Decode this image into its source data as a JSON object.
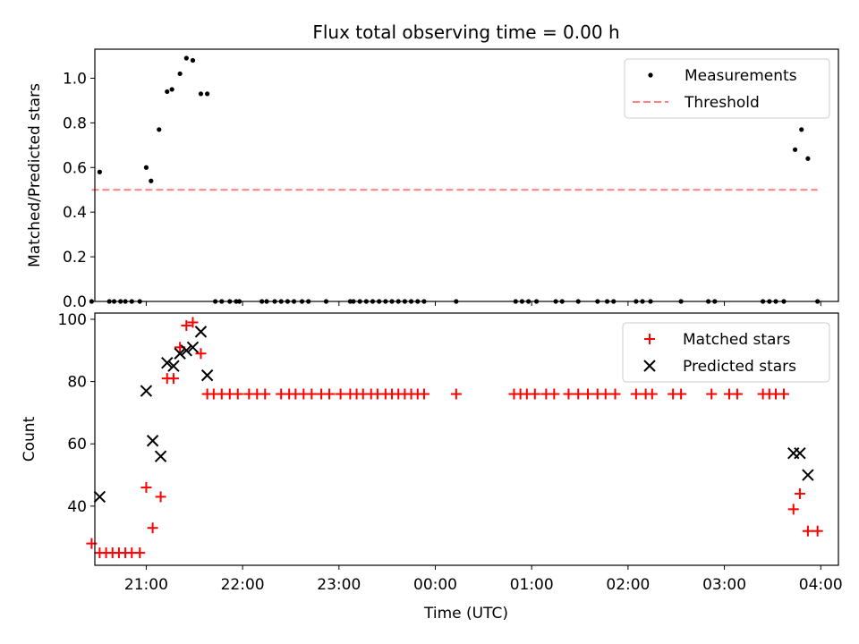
{
  "chart_data": [
    {
      "type": "scatter",
      "title": "Flux total observing time = 0.00 h",
      "xlabel": "",
      "ylabel": "Matched/Predicted stars",
      "xlim": [
        "20:28",
        "04:11"
      ],
      "ylim": [
        0,
        1.13
      ],
      "yticks": [
        "0.0",
        "0.2",
        "0.4",
        "0.6",
        "0.8",
        "1.0"
      ],
      "grid": false,
      "legend_position": "top-right",
      "series": [
        {
          "name": "Measurements",
          "marker": "dot",
          "color": "#000000",
          "points": [
            [
              "20:26",
              0.0
            ],
            [
              "20:31",
              0.58
            ],
            [
              "20:37",
              0.0
            ],
            [
              "20:40",
              0.0
            ],
            [
              "20:44",
              0.0
            ],
            [
              "20:47",
              0.0
            ],
            [
              "20:51",
              0.0
            ],
            [
              "20:56",
              0.0
            ],
            [
              "21:00",
              0.6
            ],
            [
              "21:03",
              0.54
            ],
            [
              "21:08",
              0.77
            ],
            [
              "21:13",
              0.94
            ],
            [
              "21:16",
              0.95
            ],
            [
              "21:21",
              1.02
            ],
            [
              "21:25",
              1.09
            ],
            [
              "21:29",
              1.08
            ],
            [
              "21:34",
              0.93
            ],
            [
              "21:38",
              0.93
            ],
            [
              "21:43",
              0.0
            ],
            [
              "21:47",
              0.0
            ],
            [
              "21:52",
              0.0
            ],
            [
              "21:56",
              0.0
            ],
            [
              "21:58",
              0.0
            ],
            [
              "22:12",
              0.0
            ],
            [
              "22:15",
              0.0
            ],
            [
              "22:20",
              0.0
            ],
            [
              "22:24",
              0.0
            ],
            [
              "22:28",
              0.0
            ],
            [
              "22:32",
              0.0
            ],
            [
              "22:37",
              0.0
            ],
            [
              "22:41",
              0.0
            ],
            [
              "22:52",
              0.0
            ],
            [
              "23:07",
              0.0
            ],
            [
              "23:09",
              0.0
            ],
            [
              "23:13",
              0.0
            ],
            [
              "23:17",
              0.0
            ],
            [
              "23:21",
              0.0
            ],
            [
              "23:25",
              0.0
            ],
            [
              "23:29",
              0.0
            ],
            [
              "23:33",
              0.0
            ],
            [
              "23:37",
              0.0
            ],
            [
              "23:41",
              0.0
            ],
            [
              "23:45",
              0.0
            ],
            [
              "23:49",
              0.0
            ],
            [
              "23:53",
              0.0
            ],
            [
              "00:13",
              0.0
            ],
            [
              "00:50",
              0.0
            ],
            [
              "00:54",
              0.0
            ],
            [
              "00:58",
              0.0
            ],
            [
              "01:03",
              0.0
            ],
            [
              "01:15",
              0.0
            ],
            [
              "01:19",
              0.0
            ],
            [
              "01:29",
              0.0
            ],
            [
              "01:41",
              0.0
            ],
            [
              "01:47",
              0.0
            ],
            [
              "01:51",
              0.0
            ],
            [
              "02:05",
              0.0
            ],
            [
              "02:09",
              0.0
            ],
            [
              "02:14",
              0.0
            ],
            [
              "02:33",
              0.0
            ],
            [
              "02:50",
              0.0
            ],
            [
              "02:54",
              0.0
            ],
            [
              "03:24",
              0.0
            ],
            [
              "03:28",
              0.0
            ],
            [
              "03:32",
              0.0
            ],
            [
              "03:37",
              0.0
            ],
            [
              "03:44",
              0.68
            ],
            [
              "03:48",
              0.77
            ],
            [
              "03:52",
              0.64
            ],
            [
              "03:58",
              0.0
            ]
          ]
        },
        {
          "name": "Threshold",
          "line": "dashed",
          "color": "#ff8080",
          "points": [
            [
              "20:26",
              0.5
            ],
            [
              "03:58",
              0.5
            ]
          ]
        }
      ]
    },
    {
      "type": "scatter",
      "title": "",
      "xlabel": "Time (UTC)",
      "ylabel": "Count",
      "xlim": [
        "20:28",
        "04:11"
      ],
      "ylim": [
        21,
        102
      ],
      "xticks": [
        "21:00",
        "22:00",
        "23:00",
        "00:00",
        "01:00",
        "02:00",
        "03:00",
        "04:00"
      ],
      "yticks": [
        "40",
        "60",
        "80",
        "100"
      ],
      "grid": false,
      "legend_position": "top-right",
      "series": [
        {
          "name": "Matched stars",
          "marker": "plus",
          "color": "#ff0000",
          "points": [
            [
              "20:26",
              28
            ],
            [
              "20:31",
              25
            ],
            [
              "20:35",
              25
            ],
            [
              "20:39",
              25
            ],
            [
              "20:43",
              25
            ],
            [
              "20:47",
              25
            ],
            [
              "20:51",
              25
            ],
            [
              "20:56",
              25
            ],
            [
              "21:00",
              46
            ],
            [
              "21:04",
              33
            ],
            [
              "21:09",
              43
            ],
            [
              "21:13",
              81
            ],
            [
              "21:17",
              81
            ],
            [
              "21:21",
              91
            ],
            [
              "21:25",
              98
            ],
            [
              "21:29",
              99
            ],
            [
              "21:34",
              89
            ],
            [
              "21:38",
              76
            ],
            [
              "21:42",
              76
            ],
            [
              "21:47",
              76
            ],
            [
              "21:52",
              76
            ],
            [
              "21:57",
              76
            ],
            [
              "22:04",
              76
            ],
            [
              "22:09",
              76
            ],
            [
              "22:14",
              76
            ],
            [
              "22:24",
              76
            ],
            [
              "22:29",
              76
            ],
            [
              "22:33",
              76
            ],
            [
              "22:38",
              76
            ],
            [
              "22:43",
              76
            ],
            [
              "22:49",
              76
            ],
            [
              "22:54",
              76
            ],
            [
              "23:01",
              76
            ],
            [
              "23:07",
              76
            ],
            [
              "23:11",
              76
            ],
            [
              "23:15",
              76
            ],
            [
              "23:20",
              76
            ],
            [
              "23:24",
              76
            ],
            [
              "23:29",
              76
            ],
            [
              "23:33",
              76
            ],
            [
              "23:37",
              76
            ],
            [
              "23:41",
              76
            ],
            [
              "23:45",
              76
            ],
            [
              "23:49",
              76
            ],
            [
              "23:53",
              76
            ],
            [
              "00:13",
              76
            ],
            [
              "00:49",
              76
            ],
            [
              "00:53",
              76
            ],
            [
              "00:57",
              76
            ],
            [
              "01:02",
              76
            ],
            [
              "01:09",
              76
            ],
            [
              "01:14",
              76
            ],
            [
              "01:23",
              76
            ],
            [
              "01:29",
              76
            ],
            [
              "01:35",
              76
            ],
            [
              "01:41",
              76
            ],
            [
              "01:46",
              76
            ],
            [
              "01:52",
              76
            ],
            [
              "02:05",
              76
            ],
            [
              "02:11",
              76
            ],
            [
              "02:15",
              76
            ],
            [
              "02:28",
              76
            ],
            [
              "02:33",
              76
            ],
            [
              "02:52",
              76
            ],
            [
              "03:03",
              76
            ],
            [
              "03:08",
              76
            ],
            [
              "03:24",
              76
            ],
            [
              "03:28",
              76
            ],
            [
              "03:32",
              76
            ],
            [
              "03:37",
              76
            ],
            [
              "03:43",
              39
            ],
            [
              "03:47",
              44
            ],
            [
              "03:52",
              32
            ],
            [
              "03:58",
              32
            ]
          ]
        },
        {
          "name": "Predicted stars",
          "marker": "x",
          "color": "#000000",
          "points": [
            [
              "20:31",
              43
            ],
            [
              "21:00",
              77
            ],
            [
              "21:04",
              61
            ],
            [
              "21:09",
              56
            ],
            [
              "21:13",
              86
            ],
            [
              "21:17",
              85
            ],
            [
              "21:21",
              89
            ],
            [
              "21:25",
              90
            ],
            [
              "21:29",
              91
            ],
            [
              "21:34",
              96
            ],
            [
              "21:38",
              82
            ],
            [
              "03:43",
              57
            ],
            [
              "03:47",
              57
            ],
            [
              "03:52",
              50
            ]
          ]
        }
      ]
    }
  ]
}
